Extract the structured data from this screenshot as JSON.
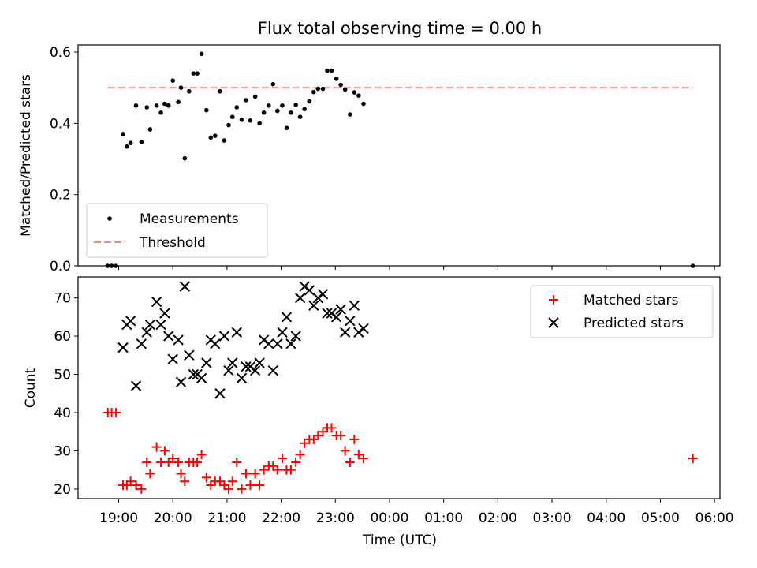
{
  "title": "Flux total observing time = 0.00 h",
  "chart_data": [
    {
      "type": "scatter",
      "ylabel": "Matched/Predicted stars",
      "xlim": [
        18.25,
        30.1
      ],
      "ylim": [
        0.0,
        0.62
      ],
      "yticks": [
        0.0,
        0.2,
        0.4,
        0.6
      ],
      "ytick_labels": [
        "0.0",
        "0.2",
        "0.4",
        "0.6"
      ],
      "threshold": 0.5,
      "threshold_x": [
        18.8,
        29.6
      ],
      "legend": {
        "position": "lower-left",
        "entries": [
          "Measurements",
          "Threshold"
        ]
      },
      "colors": {
        "measurements": "#000000",
        "threshold": "#ff7f7f"
      },
      "series": [
        {
          "name": "Measurements",
          "points": [
            [
              18.8,
              0.0
            ],
            [
              18.87,
              0.0
            ],
            [
              18.95,
              0.0
            ],
            [
              19.08,
              0.37
            ],
            [
              19.15,
              0.335
            ],
            [
              19.22,
              0.345
            ],
            [
              19.32,
              0.45
            ],
            [
              19.42,
              0.348
            ],
            [
              19.52,
              0.445
            ],
            [
              19.58,
              0.383
            ],
            [
              19.7,
              0.45
            ],
            [
              19.78,
              0.43
            ],
            [
              19.85,
              0.455
            ],
            [
              19.92,
              0.45
            ],
            [
              20.0,
              0.52
            ],
            [
              20.1,
              0.46
            ],
            [
              20.15,
              0.5
            ],
            [
              20.22,
              0.302
            ],
            [
              20.3,
              0.49
            ],
            [
              20.38,
              0.54
            ],
            [
              20.45,
              0.54
            ],
            [
              20.53,
              0.595
            ],
            [
              20.62,
              0.437
            ],
            [
              20.7,
              0.36
            ],
            [
              20.78,
              0.365
            ],
            [
              20.87,
              0.49
            ],
            [
              20.95,
              0.352
            ],
            [
              21.03,
              0.395
            ],
            [
              21.1,
              0.418
            ],
            [
              21.18,
              0.445
            ],
            [
              21.27,
              0.41
            ],
            [
              21.35,
              0.465
            ],
            [
              21.43,
              0.408
            ],
            [
              21.52,
              0.475
            ],
            [
              21.6,
              0.4
            ],
            [
              21.68,
              0.43
            ],
            [
              21.77,
              0.45
            ],
            [
              21.85,
              0.51
            ],
            [
              21.93,
              0.435
            ],
            [
              22.02,
              0.45
            ],
            [
              22.1,
              0.387
            ],
            [
              22.18,
              0.43
            ],
            [
              22.27,
              0.452
            ],
            [
              22.35,
              0.418
            ],
            [
              22.43,
              0.44
            ],
            [
              22.52,
              0.462
            ],
            [
              22.6,
              0.488
            ],
            [
              22.68,
              0.497
            ],
            [
              22.77,
              0.497
            ],
            [
              22.85,
              0.548
            ],
            [
              22.93,
              0.548
            ],
            [
              23.02,
              0.525
            ],
            [
              23.1,
              0.508
            ],
            [
              23.18,
              0.495
            ],
            [
              23.27,
              0.425
            ],
            [
              23.35,
              0.487
            ],
            [
              23.43,
              0.478
            ],
            [
              23.52,
              0.455
            ],
            [
              29.6,
              0.0
            ]
          ]
        },
        {
          "name": "Threshold",
          "values": [
            0.5,
            0.5
          ]
        }
      ]
    },
    {
      "type": "scatter",
      "xlabel": "Time (UTC)",
      "ylabel": "Count",
      "xlim": [
        18.25,
        30.1
      ],
      "ylim": [
        17.5,
        75.5
      ],
      "xticks": [
        19,
        20,
        21,
        22,
        23,
        24,
        25,
        26,
        27,
        28,
        29,
        30
      ],
      "xtick_labels": [
        "19:00",
        "20:00",
        "21:00",
        "22:00",
        "23:00",
        "00:00",
        "01:00",
        "02:00",
        "03:00",
        "04:00",
        "05:00",
        "06:00"
      ],
      "yticks": [
        20,
        30,
        40,
        50,
        60,
        70
      ],
      "ytick_labels": [
        "20",
        "30",
        "40",
        "50",
        "60",
        "70"
      ],
      "legend": {
        "position": "top-right",
        "entries": [
          "Matched stars",
          "Predicted stars"
        ]
      },
      "colors": {
        "matched": "#ff0000",
        "predicted": "#000000"
      },
      "series": [
        {
          "name": "Matched stars",
          "points": [
            [
              18.8,
              40
            ],
            [
              18.87,
              40
            ],
            [
              18.95,
              40
            ],
            [
              19.08,
              21
            ],
            [
              19.15,
              21
            ],
            [
              19.22,
              22
            ],
            [
              19.32,
              21
            ],
            [
              19.42,
              20
            ],
            [
              19.52,
              27
            ],
            [
              19.58,
              24
            ],
            [
              19.7,
              31
            ],
            [
              19.78,
              27
            ],
            [
              19.85,
              30
            ],
            [
              19.92,
              27
            ],
            [
              20.0,
              28
            ],
            [
              20.1,
              27
            ],
            [
              20.15,
              24
            ],
            [
              20.22,
              22
            ],
            [
              20.3,
              27
            ],
            [
              20.38,
              27
            ],
            [
              20.45,
              27
            ],
            [
              20.53,
              29
            ],
            [
              20.62,
              23
            ],
            [
              20.7,
              21
            ],
            [
              20.78,
              22
            ],
            [
              20.87,
              22
            ],
            [
              20.95,
              21
            ],
            [
              21.03,
              20
            ],
            [
              21.1,
              22
            ],
            [
              21.18,
              27
            ],
            [
              21.27,
              20
            ],
            [
              21.35,
              24
            ],
            [
              21.43,
              21
            ],
            [
              21.52,
              24
            ],
            [
              21.6,
              21
            ],
            [
              21.68,
              25
            ],
            [
              21.77,
              26
            ],
            [
              21.85,
              26
            ],
            [
              21.93,
              25
            ],
            [
              22.02,
              28
            ],
            [
              22.1,
              25
            ],
            [
              22.18,
              25
            ],
            [
              22.27,
              27
            ],
            [
              22.35,
              29
            ],
            [
              22.43,
              32
            ],
            [
              22.52,
              33
            ],
            [
              22.6,
              33
            ],
            [
              22.68,
              34
            ],
            [
              22.77,
              35
            ],
            [
              22.85,
              36
            ],
            [
              22.93,
              36
            ],
            [
              23.02,
              34
            ],
            [
              23.1,
              34
            ],
            [
              23.18,
              30
            ],
            [
              23.27,
              27
            ],
            [
              23.35,
              33
            ],
            [
              23.43,
              29
            ],
            [
              23.52,
              28
            ],
            [
              29.6,
              28
            ]
          ]
        },
        {
          "name": "Predicted stars",
          "points": [
            [
              19.08,
              57
            ],
            [
              19.15,
              63
            ],
            [
              19.22,
              64
            ],
            [
              19.32,
              47
            ],
            [
              19.42,
              58
            ],
            [
              19.52,
              61
            ],
            [
              19.58,
              63
            ],
            [
              19.7,
              69
            ],
            [
              19.78,
              63
            ],
            [
              19.85,
              66
            ],
            [
              19.92,
              60
            ],
            [
              20.0,
              54
            ],
            [
              20.1,
              59
            ],
            [
              20.15,
              48
            ],
            [
              20.22,
              73
            ],
            [
              20.3,
              55
            ],
            [
              20.38,
              50
            ],
            [
              20.45,
              50
            ],
            [
              20.53,
              49
            ],
            [
              20.62,
              53
            ],
            [
              20.7,
              59
            ],
            [
              20.78,
              58
            ],
            [
              20.87,
              45
            ],
            [
              20.95,
              60
            ],
            [
              21.03,
              51
            ],
            [
              21.1,
              53
            ],
            [
              21.18,
              61
            ],
            [
              21.27,
              49
            ],
            [
              21.35,
              52
            ],
            [
              21.43,
              52
            ],
            [
              21.52,
              51
            ],
            [
              21.6,
              53
            ],
            [
              21.68,
              59
            ],
            [
              21.77,
              58
            ],
            [
              21.85,
              51
            ],
            [
              21.93,
              58
            ],
            [
              22.02,
              61
            ],
            [
              22.1,
              65
            ],
            [
              22.18,
              58
            ],
            [
              22.27,
              60
            ],
            [
              22.35,
              70
            ],
            [
              22.43,
              73
            ],
            [
              22.52,
              72
            ],
            [
              22.6,
              68
            ],
            [
              22.68,
              70
            ],
            [
              22.77,
              71
            ],
            [
              22.85,
              66
            ],
            [
              22.93,
              66
            ],
            [
              23.02,
              65
            ],
            [
              23.1,
              67
            ],
            [
              23.18,
              61
            ],
            [
              23.27,
              64
            ],
            [
              23.35,
              68
            ],
            [
              23.43,
              61
            ],
            [
              23.52,
              62
            ]
          ]
        }
      ]
    }
  ]
}
